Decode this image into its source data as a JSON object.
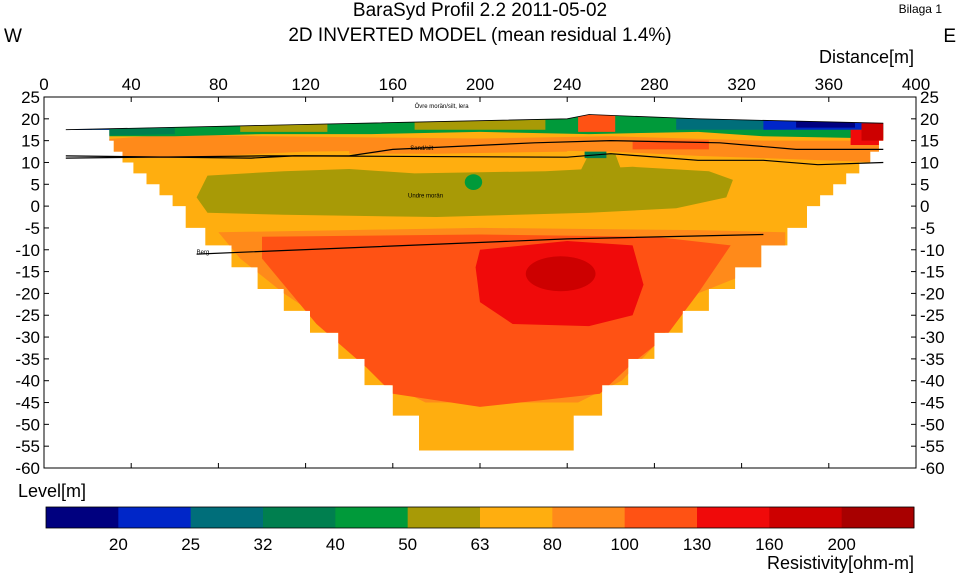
{
  "header": {
    "title": "BaraSyd Profil 2.2 2011-05-02",
    "subtitle": "2D INVERTED MODEL (mean residual 1.4%)",
    "appendix": "Bilaga 1",
    "west": "W",
    "east": "E"
  },
  "chart_data": {
    "type": "heatmap",
    "xlabel": "Distance[m]",
    "ylabel": "Level[m]",
    "xlim": [
      0,
      400
    ],
    "ylim": [
      -60,
      25
    ],
    "x_ticks": [
      0,
      40,
      80,
      120,
      160,
      200,
      240,
      280,
      320,
      360,
      400
    ],
    "y_ticks": [
      25,
      20,
      15,
      10,
      5,
      0,
      -5,
      -10,
      -15,
      -20,
      -25,
      -30,
      -35,
      -40,
      -45,
      -50,
      -55,
      -60
    ],
    "colorbar": {
      "label": "Resistivity[ohm-m]",
      "tick_labels": [
        "20",
        "25",
        "32",
        "40",
        "50",
        "63",
        "80",
        "100",
        "130",
        "160",
        "200"
      ],
      "colors": [
        "#00007f",
        "#0026c8",
        "#006e7a",
        "#007f4f",
        "#009a3a",
        "#a89a06",
        "#ffae0f",
        "#ff8a1a",
        "#ff5214",
        "#f00a0a",
        "#cd0000",
        "#a80000"
      ]
    },
    "annotations": [
      {
        "text": "Övre morän/silt, lera",
        "x": 170,
        "y": 22.5
      },
      {
        "text": "Sand/silt",
        "x": 168,
        "y": 12.8
      },
      {
        "text": "Undre morän",
        "x": 167,
        "y": 2
      },
      {
        "text": "Berg",
        "x": 70,
        "y": -11
      }
    ],
    "boundaries": [
      {
        "name": "surface",
        "points": [
          [
            10,
            17.5
          ],
          [
            100,
            18.5
          ],
          [
            240,
            20
          ],
          [
            250,
            21
          ],
          [
            300,
            20
          ],
          [
            385,
            19
          ]
        ]
      },
      {
        "name": "upper",
        "points": [
          [
            10,
            11
          ],
          [
            100,
            11.5
          ],
          [
            140,
            11.5
          ],
          [
            160,
            13
          ],
          [
            225,
            14.5
          ],
          [
            260,
            15
          ],
          [
            310,
            14.5
          ],
          [
            345,
            13
          ],
          [
            385,
            13
          ]
        ]
      },
      {
        "name": "lower",
        "points": [
          [
            10,
            11.5
          ],
          [
            95,
            11
          ],
          [
            115,
            11.5
          ],
          [
            240,
            11.2
          ],
          [
            260,
            12
          ],
          [
            300,
            10.5
          ],
          [
            330,
            10.5
          ],
          [
            355,
            9.5
          ],
          [
            385,
            10
          ]
        ]
      },
      {
        "name": "bedrock",
        "points": [
          [
            70,
            -11
          ],
          [
            240,
            -7.5
          ],
          [
            330,
            -6.5
          ]
        ]
      }
    ]
  }
}
